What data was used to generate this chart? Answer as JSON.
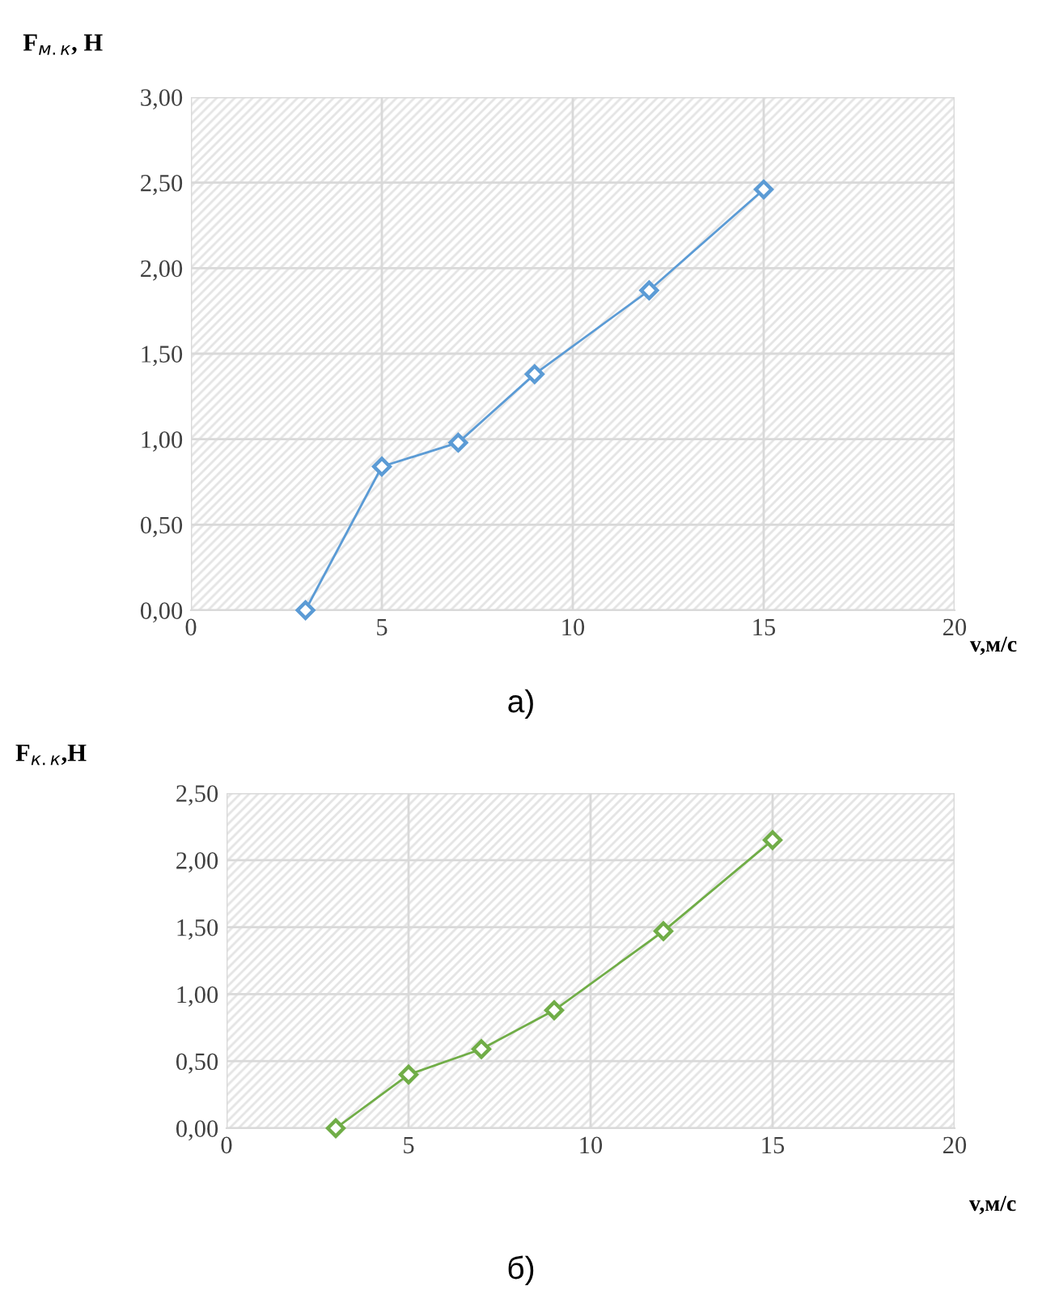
{
  "chart_data": [
    {
      "type": "line",
      "xlabel": "v,м/с",
      "ylabel": "F$_{м.к}$, Н",
      "x": [
        3,
        5,
        7,
        9,
        12,
        15
      ],
      "series": [
        {
          "color": "#5b9bd5",
          "values": [
            0,
            0.84,
            0.98,
            1.38,
            1.87,
            2.46
          ]
        }
      ],
      "xlim": [
        0,
        20
      ],
      "xticks": [
        0,
        5,
        10,
        15,
        20
      ],
      "ylim": [
        0,
        3
      ],
      "yticks": [
        {
          "value": 0,
          "label": "0,00"
        },
        {
          "value": 0.5,
          "label": "0,50"
        },
        {
          "value": 1,
          "label": "1,00"
        },
        {
          "value": 1.5,
          "label": "1,50"
        },
        {
          "value": 2,
          "label": "2,00"
        },
        {
          "value": 2.5,
          "label": "2,50"
        },
        {
          "value": 3,
          "label": "3,00"
        }
      ],
      "grid": true,
      "marker": "diamond",
      "line_style": "solid",
      "annotations": [
        "а)"
      ]
    },
    {
      "type": "line",
      "xlabel": "v,м/с",
      "ylabel": "F$_{к.к}$,Н",
      "x": [
        3,
        5,
        7,
        9,
        12,
        15
      ],
      "series": [
        {
          "color": "#70ad47",
          "values": [
            0,
            0.4,
            0.59,
            0.88,
            1.47,
            2.15
          ]
        }
      ],
      "xlim": [
        0,
        20
      ],
      "xticks": [
        0,
        5,
        10,
        15,
        20
      ],
      "ylim": [
        0,
        2.5
      ],
      "yticks": [
        {
          "value": 0,
          "label": "0,00"
        },
        {
          "value": 0.5,
          "label": "0,50"
        },
        {
          "value": 1,
          "label": "1,00"
        },
        {
          "value": 1.5,
          "label": "1,50"
        },
        {
          "value": 2,
          "label": "2,00"
        },
        {
          "value": 2.5,
          "label": "2,50"
        }
      ],
      "grid": true,
      "marker": "diamond",
      "line_style": "solid",
      "annotations": [
        "б)"
      ]
    }
  ]
}
